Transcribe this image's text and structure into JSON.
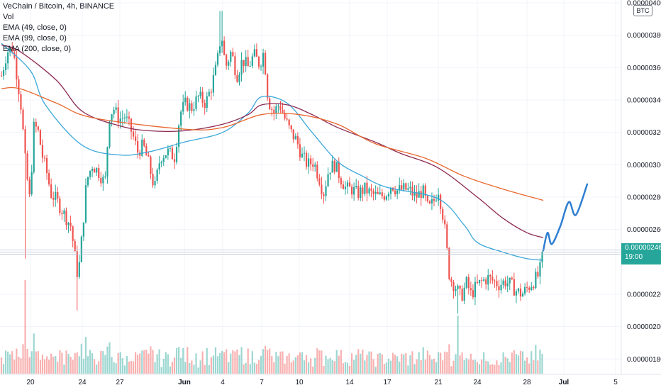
{
  "header": {
    "symbol_line": "VeChain / Bitcoin, 4h, BINANCE",
    "indicators": [
      "Vol",
      "EMA (49, close, 0)",
      "EMA (99, close, 0)",
      "EMA (200, close, 0)"
    ]
  },
  "currency_label": "BTC",
  "last_price": {
    "value": "0.00000246",
    "countdown": "19:00"
  },
  "colors": {
    "up": "#26a69a",
    "down": "#ef5350",
    "ema49": "#3aa7d9",
    "ema99": "#8e2a52",
    "ema200": "#e8672f",
    "projection": "#2f7fd1"
  },
  "chart_data": {
    "type": "candlestick",
    "y_unit": "BTC",
    "ylim": [
      1.74e-06,
      4.01e-06
    ],
    "y_ticks": [
      "0.00000400",
      "0.00000380",
      "0.00000360",
      "0.00000340",
      "0.00000320",
      "0.00000300",
      "0.00000280",
      "0.00000260",
      "0.00000220",
      "0.00000200",
      "0.00000180"
    ],
    "x_ticks": [
      "20",
      "24",
      "27",
      "Jun",
      "4",
      "7",
      "10",
      "14",
      "17",
      "21",
      "24",
      "28",
      "Jul",
      "5"
    ],
    "ema_series": [
      {
        "name": "EMA (49, close, 0)",
        "points": [
          [
            "18",
            3.75
          ],
          [
            "20",
            3.58
          ],
          [
            "22",
            3.37
          ],
          [
            "24",
            3.12
          ],
          [
            "27",
            3.06
          ],
          [
            "29",
            3.08
          ],
          [
            "Jun",
            3.14
          ],
          [
            "4",
            3.2
          ],
          [
            "6",
            3.32
          ],
          [
            "7",
            3.42
          ],
          [
            "9",
            3.38
          ],
          [
            "11",
            3.2
          ],
          [
            "13",
            3.02
          ],
          [
            "15",
            2.93
          ],
          [
            "17",
            2.86
          ],
          [
            "20",
            2.79
          ],
          [
            "22",
            2.63
          ],
          [
            "24",
            2.52
          ],
          [
            "26",
            2.46
          ],
          [
            "28",
            2.42
          ],
          [
            "29",
            2.41
          ]
        ]
      },
      {
        "name": "EMA (99, close, 0)",
        "points": [
          [
            "18",
            3.74
          ],
          [
            "19",
            3.7
          ],
          [
            "22",
            3.52
          ],
          [
            "24",
            3.33
          ],
          [
            "27",
            3.24
          ],
          [
            "29",
            3.21
          ],
          [
            "Jun",
            3.21
          ],
          [
            "4",
            3.25
          ],
          [
            "6",
            3.31
          ],
          [
            "7",
            3.37
          ],
          [
            "9",
            3.37
          ],
          [
            "11",
            3.31
          ],
          [
            "13",
            3.23
          ],
          [
            "16",
            3.14
          ],
          [
            "18",
            3.07
          ],
          [
            "21",
            2.98
          ],
          [
            "24",
            2.8
          ],
          [
            "26",
            2.67
          ],
          [
            "28",
            2.58
          ],
          [
            "29",
            2.55
          ]
        ]
      },
      {
        "name": "EMA (200, close, 0)",
        "points": [
          [
            "17",
            3.47
          ],
          [
            "19",
            3.47
          ],
          [
            "22",
            3.38
          ],
          [
            "25",
            3.29
          ],
          [
            "Jun",
            3.22
          ],
          [
            "4",
            3.23
          ],
          [
            "7",
            3.31
          ],
          [
            "10",
            3.31
          ],
          [
            "13",
            3.25
          ],
          [
            "16",
            3.13
          ],
          [
            "20",
            3.04
          ],
          [
            "23",
            2.93
          ],
          [
            "26",
            2.85
          ],
          [
            "28",
            2.78
          ]
        ]
      }
    ],
    "projection": {
      "points": [
        [
          "29",
          2.47
        ],
        [
          "29",
          2.58
        ],
        [
          "29",
          2.51
        ],
        [
          "Jul",
          2.62
        ],
        [
          "Jul",
          2.77
        ],
        [
          "2",
          2.69
        ],
        [
          "3",
          2.88
        ]
      ]
    }
  }
}
